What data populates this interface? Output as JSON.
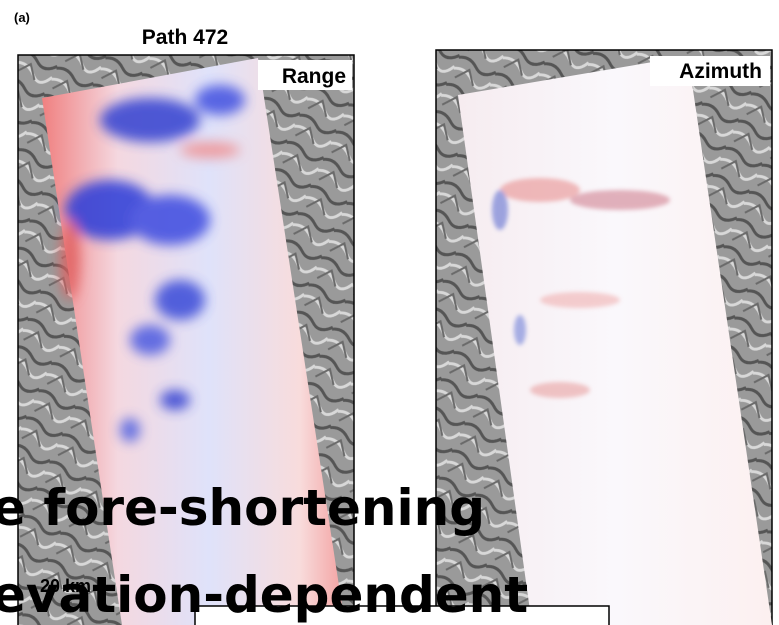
{
  "panel_label": "(a)",
  "title": "Path 472",
  "panels": [
    {
      "label": "Range"
    },
    {
      "label": "Azimuth"
    }
  ],
  "scale_bar": "20 km",
  "overlay_text": [
    "e fore-shortening",
    "evation-dependent"
  ]
}
